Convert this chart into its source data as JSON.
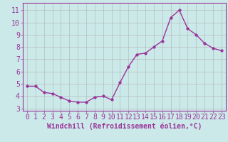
{
  "x": [
    0,
    1,
    2,
    3,
    4,
    5,
    6,
    7,
    8,
    9,
    10,
    11,
    12,
    13,
    14,
    15,
    16,
    17,
    18,
    19,
    20,
    21,
    22,
    23
  ],
  "y": [
    4.8,
    4.8,
    4.3,
    4.2,
    3.9,
    3.6,
    3.5,
    3.5,
    3.9,
    4.0,
    3.7,
    5.1,
    6.4,
    7.4,
    7.5,
    8.0,
    8.5,
    10.4,
    11.0,
    9.5,
    9.0,
    8.3,
    7.9,
    7.7
  ],
  "line_color": "#993399",
  "marker": "o",
  "markersize": 2.5,
  "linewidth": 1.0,
  "xlabel": "Windchill (Refroidissement éolien,°C)",
  "xlabel_fontsize": 7,
  "ylim": [
    2.8,
    11.6
  ],
  "yticks": [
    3,
    4,
    5,
    6,
    7,
    8,
    9,
    10,
    11
  ],
  "xlim": [
    -0.5,
    23.5
  ],
  "xticks": [
    0,
    1,
    2,
    3,
    4,
    5,
    6,
    7,
    8,
    9,
    10,
    11,
    12,
    13,
    14,
    15,
    16,
    17,
    18,
    19,
    20,
    21,
    22,
    23
  ],
  "bg_color": "#cce9e9",
  "grid_color": "#aaaaaa",
  "tick_fontsize": 7,
  "spine_color": "#993399"
}
